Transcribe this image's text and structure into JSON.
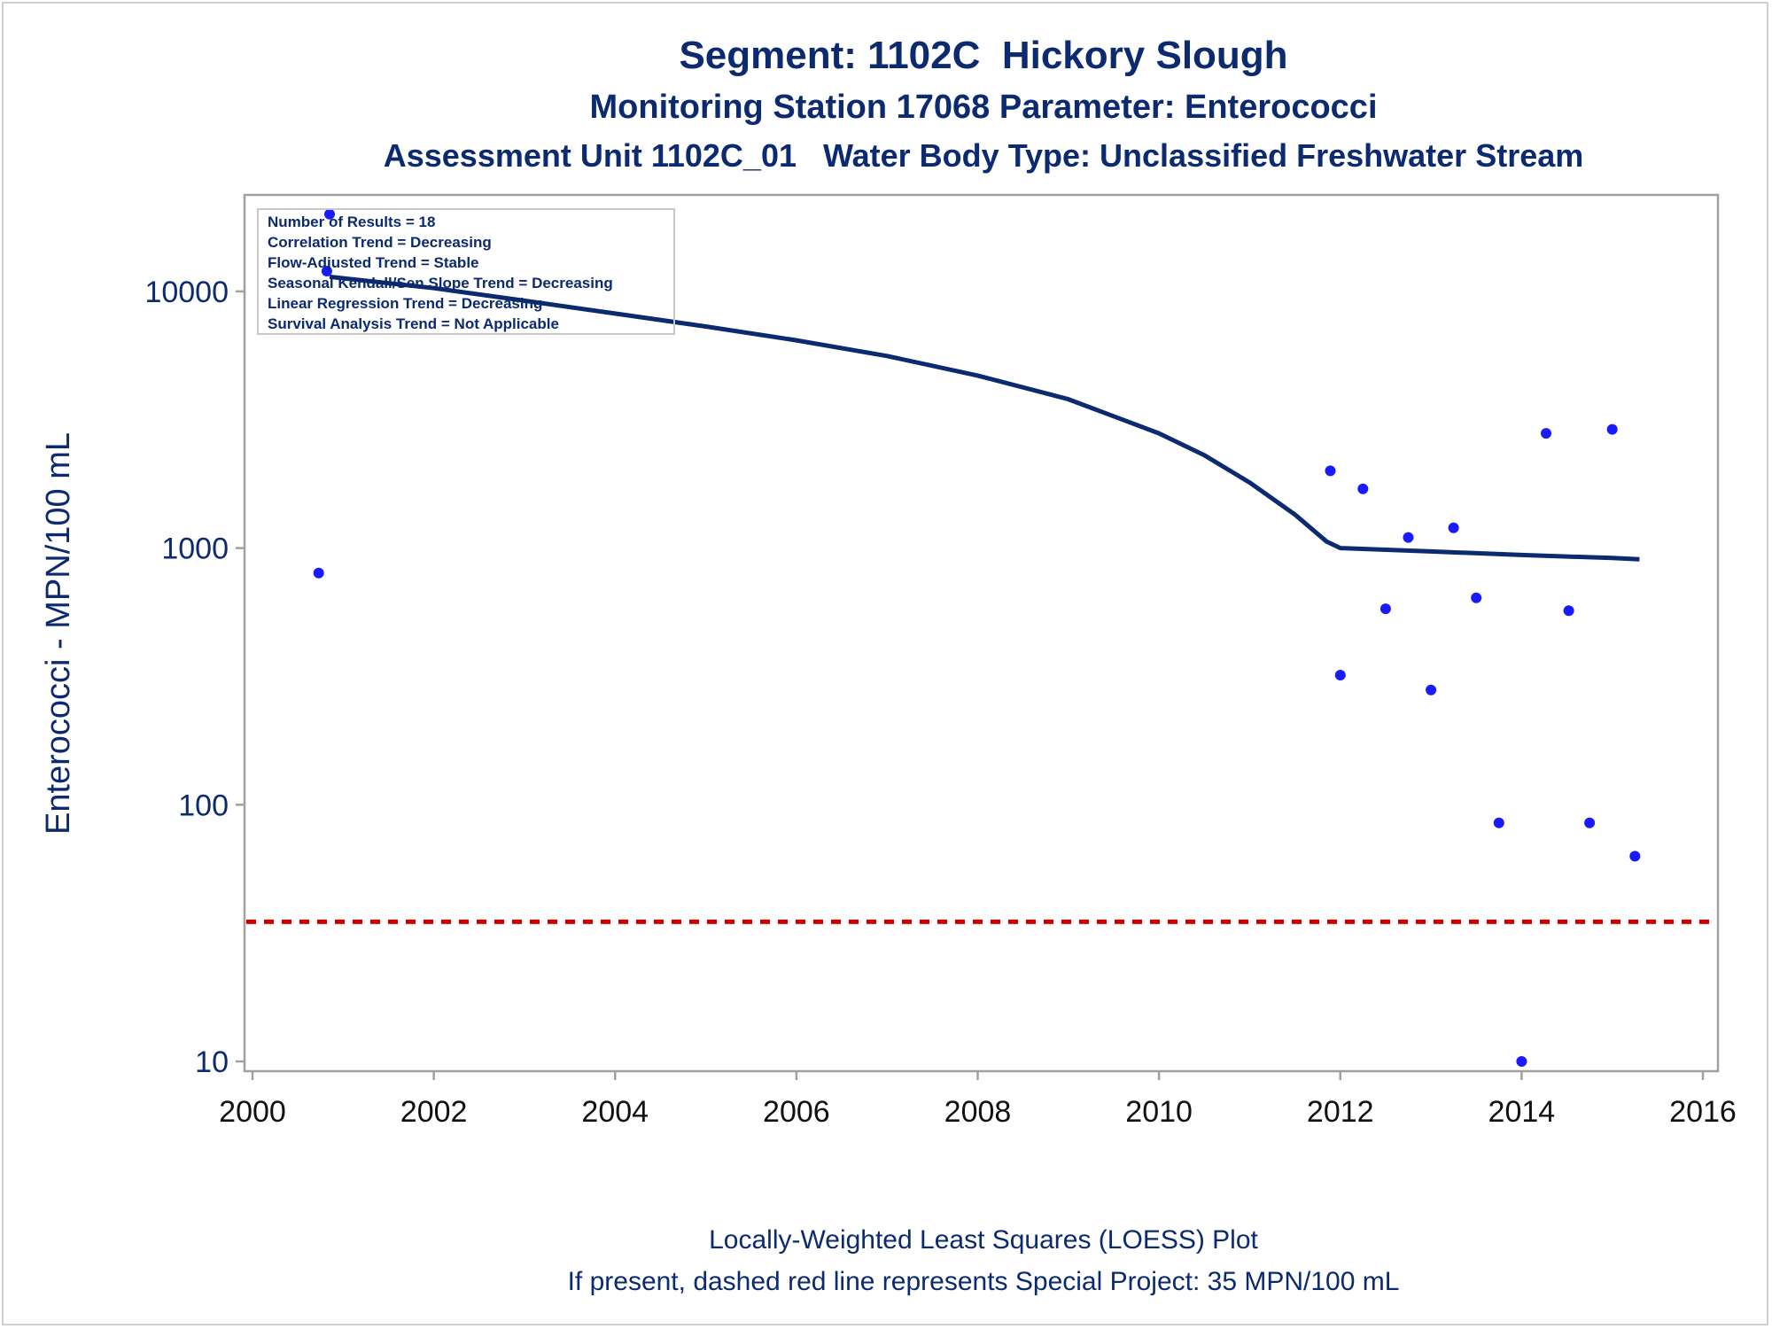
{
  "titles": {
    "line1": "Segment: 1102C  Hickory Slough",
    "line2": "Monitoring Station 17068 Parameter: Enterococci",
    "line3": "Assessment Unit 1102C_01   Water Body Type: Unclassified Freshwater Stream"
  },
  "footer": {
    "line1": "Locally-Weighted Least Squares (LOESS) Plot",
    "line2": "If present, dashed red line represents Special Project: 35 MPN/100 mL"
  },
  "stats_box": [
    "Number of Results = 18",
    "Correlation Trend = Decreasing",
    "Flow-Adjusted Trend = Stable",
    "Seasonal Kendall/Sen Slope Trend = Decreasing",
    "Linear Regression Trend = Decreasing",
    "Survival Analysis Trend = Not Applicable"
  ],
  "colors": {
    "text": "#0b2a6f",
    "points": "#1a1aff",
    "loess": "#0b2a6f",
    "reference": "#cc0000",
    "frame": "#a0a0a0"
  },
  "chart_data": {
    "type": "scatter",
    "ylabel": "Enterococci - MPN/100 mL",
    "xlabel": "",
    "xlim": [
      2000,
      2016
    ],
    "ylim": [
      10,
      20000
    ],
    "yscale": "log",
    "x_ticks": [
      2000,
      2002,
      2004,
      2006,
      2008,
      2010,
      2012,
      2014,
      2016
    ],
    "y_ticks": [
      10,
      100,
      1000,
      10000
    ],
    "grid": false,
    "series": [
      {
        "kind": "points",
        "points": [
          {
            "x": 2000.73,
            "y": 800
          },
          {
            "x": 2000.82,
            "y": 12000
          },
          {
            "x": 2000.85,
            "y": 20000
          },
          {
            "x": 2011.89,
            "y": 2000
          },
          {
            "x": 2012.0,
            "y": 320
          },
          {
            "x": 2012.25,
            "y": 1700
          },
          {
            "x": 2012.5,
            "y": 580
          },
          {
            "x": 2012.75,
            "y": 1100
          },
          {
            "x": 2013.0,
            "y": 280
          },
          {
            "x": 2013.25,
            "y": 1200
          },
          {
            "x": 2013.5,
            "y": 640
          },
          {
            "x": 2013.75,
            "y": 85
          },
          {
            "x": 2014.0,
            "y": 10
          },
          {
            "x": 2014.27,
            "y": 2800
          },
          {
            "x": 2014.52,
            "y": 570
          },
          {
            "x": 2014.75,
            "y": 85
          },
          {
            "x": 2015.0,
            "y": 2900
          },
          {
            "x": 2015.25,
            "y": 63
          }
        ]
      },
      {
        "kind": "loess",
        "points": [
          {
            "x": 2000.85,
            "y": 11400
          },
          {
            "x": 2002,
            "y": 10300
          },
          {
            "x": 2003,
            "y": 9200
          },
          {
            "x": 2004,
            "y": 8200
          },
          {
            "x": 2005,
            "y": 7300
          },
          {
            "x": 2006,
            "y": 6450
          },
          {
            "x": 2007,
            "y": 5600
          },
          {
            "x": 2008,
            "y": 4700
          },
          {
            "x": 2009,
            "y": 3800
          },
          {
            "x": 2010,
            "y": 2800
          },
          {
            "x": 2010.5,
            "y": 2300
          },
          {
            "x": 2011,
            "y": 1800
          },
          {
            "x": 2011.5,
            "y": 1350
          },
          {
            "x": 2011.85,
            "y": 1060
          },
          {
            "x": 2012,
            "y": 1000
          },
          {
            "x": 2013,
            "y": 970
          },
          {
            "x": 2014,
            "y": 940
          },
          {
            "x": 2015,
            "y": 915
          },
          {
            "x": 2015.3,
            "y": 905
          }
        ]
      },
      {
        "kind": "reference",
        "y": 35
      }
    ]
  }
}
